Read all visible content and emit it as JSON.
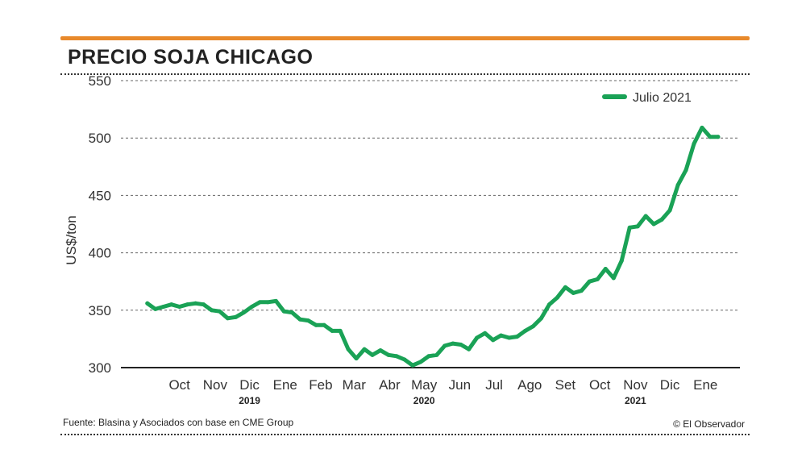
{
  "header": {
    "title": "PRECIO SOJA CHICAGO",
    "accent_color": "#e8892b"
  },
  "footer": {
    "source": "Fuente: Blasina y Asociados con base en CME Group",
    "credit": "© El Observador"
  },
  "chart_data": {
    "type": "line",
    "title": "PRECIO SOJA CHICAGO",
    "ylabel": "US$/ton",
    "ylim": [
      300,
      550
    ],
    "yticks": [
      300,
      350,
      400,
      450,
      500,
      550
    ],
    "grid": true,
    "legend_position": "top-right",
    "month_labels": [
      {
        "label": "Oct",
        "date": "2019-10-01"
      },
      {
        "label": "Nov",
        "date": "2019-11-01"
      },
      {
        "label": "Dic",
        "date": "2019-12-01"
      },
      {
        "label": "Ene",
        "date": "2020-01-01"
      },
      {
        "label": "Feb",
        "date": "2020-02-01"
      },
      {
        "label": "Mar",
        "date": "2020-03-01"
      },
      {
        "label": "Abr",
        "date": "2020-04-01"
      },
      {
        "label": "May",
        "date": "2020-05-01"
      },
      {
        "label": "Jun",
        "date": "2020-06-01"
      },
      {
        "label": "Jul",
        "date": "2020-07-01"
      },
      {
        "label": "Ago",
        "date": "2020-08-01"
      },
      {
        "label": "Set",
        "date": "2020-09-01"
      },
      {
        "label": "Oct",
        "date": "2020-10-01"
      },
      {
        "label": "Nov",
        "date": "2020-11-01"
      },
      {
        "label": "Dic",
        "date": "2020-12-01"
      },
      {
        "label": "Ene",
        "date": "2021-01-01"
      }
    ],
    "year_labels": [
      {
        "label": "2019",
        "date": "2019-12-01"
      },
      {
        "label": "2020",
        "date": "2020-05-01"
      },
      {
        "label": "2021",
        "date": "2020-11-01"
      }
    ],
    "series": [
      {
        "name": "Julio 2021",
        "color": "#1aa256",
        "points": [
          [
            "2019-09-17",
            356
          ],
          [
            "2019-09-24",
            351
          ],
          [
            "2019-10-01",
            353
          ],
          [
            "2019-10-08",
            355
          ],
          [
            "2019-10-15",
            353
          ],
          [
            "2019-10-22",
            355
          ],
          [
            "2019-10-29",
            356
          ],
          [
            "2019-11-05",
            355
          ],
          [
            "2019-11-12",
            350
          ],
          [
            "2019-11-19",
            349
          ],
          [
            "2019-11-26",
            343
          ],
          [
            "2019-12-03",
            344
          ],
          [
            "2019-12-10",
            348
          ],
          [
            "2019-12-17",
            353
          ],
          [
            "2019-12-24",
            357
          ],
          [
            "2019-12-31",
            357
          ],
          [
            "2020-01-07",
            358
          ],
          [
            "2020-01-14",
            349
          ],
          [
            "2020-01-21",
            348
          ],
          [
            "2020-01-28",
            342
          ],
          [
            "2020-02-04",
            341
          ],
          [
            "2020-02-11",
            337
          ],
          [
            "2020-02-18",
            337
          ],
          [
            "2020-02-25",
            332
          ],
          [
            "2020-03-03",
            332
          ],
          [
            "2020-03-10",
            316
          ],
          [
            "2020-03-17",
            308
          ],
          [
            "2020-03-24",
            316
          ],
          [
            "2020-03-31",
            311
          ],
          [
            "2020-04-07",
            315
          ],
          [
            "2020-04-14",
            311
          ],
          [
            "2020-04-21",
            310
          ],
          [
            "2020-04-28",
            307
          ],
          [
            "2020-05-05",
            302
          ],
          [
            "2020-05-12",
            305
          ],
          [
            "2020-05-19",
            310
          ],
          [
            "2020-05-26",
            311
          ],
          [
            "2020-06-02",
            319
          ],
          [
            "2020-06-09",
            321
          ],
          [
            "2020-06-16",
            320
          ],
          [
            "2020-06-23",
            316
          ],
          [
            "2020-06-30",
            326
          ],
          [
            "2020-07-07",
            330
          ],
          [
            "2020-07-14",
            324
          ],
          [
            "2020-07-21",
            328
          ],
          [
            "2020-07-28",
            326
          ],
          [
            "2020-08-04",
            327
          ],
          [
            "2020-08-11",
            332
          ],
          [
            "2020-08-18",
            336
          ],
          [
            "2020-08-25",
            343
          ],
          [
            "2020-09-01",
            355
          ],
          [
            "2020-09-08",
            361
          ],
          [
            "2020-09-15",
            370
          ],
          [
            "2020-09-22",
            365
          ],
          [
            "2020-09-29",
            367
          ],
          [
            "2020-10-06",
            375
          ],
          [
            "2020-10-13",
            377
          ],
          [
            "2020-10-20",
            386
          ],
          [
            "2020-10-27",
            378
          ],
          [
            "2020-11-03",
            393
          ],
          [
            "2020-11-10",
            422
          ],
          [
            "2020-11-17",
            423
          ],
          [
            "2020-11-24",
            432
          ],
          [
            "2020-12-01",
            425
          ],
          [
            "2020-12-08",
            429
          ],
          [
            "2020-12-15",
            437
          ],
          [
            "2020-12-22",
            459
          ],
          [
            "2020-12-29",
            472
          ],
          [
            "2021-01-05",
            495
          ],
          [
            "2021-01-12",
            509
          ],
          [
            "2021-01-19",
            501
          ],
          [
            "2021-01-26",
            501
          ]
        ]
      }
    ]
  }
}
